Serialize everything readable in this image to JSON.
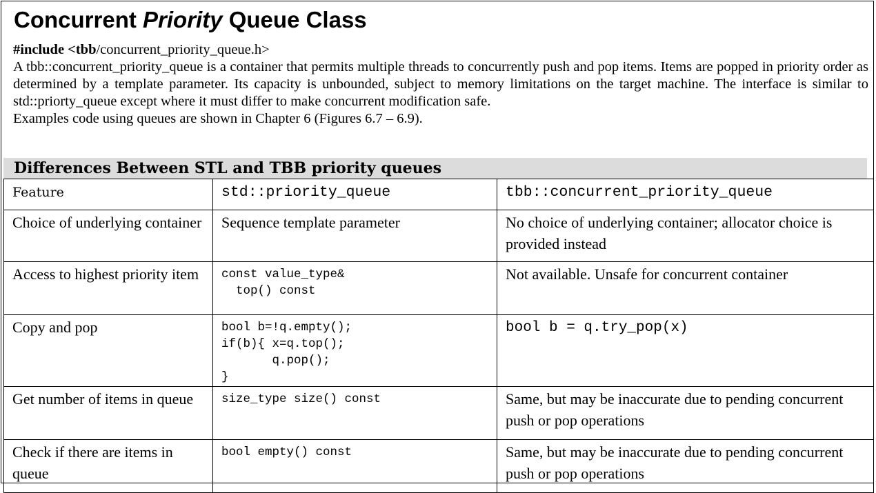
{
  "title": {
    "part1": "Concurrent ",
    "part2": "Priority",
    "part3": " Queue Class"
  },
  "description": {
    "include_bold": "#include <tbb",
    "include_rest": "/concurrent_priority_queue.h>",
    "paragraph": "A tbb::concurrent_priority_queue is a container that permits multiple threads to concurrently push and pop items. Items are popped in priority order as determined by a template parameter. Its capacity is unbounded, subject to memory limitations on the target machine. The interface is similar to std::priorty_queue except where it must differ to make concurrent modification safe.",
    "examples": "Examples code using queues are shown in Chapter 6 (Figures 6.7 – 6.9)."
  },
  "section_header": "Differences Between STL and TBB priority queues",
  "table": {
    "headers": [
      "Feature",
      "std::priority_queue",
      "tbb::concurrent_priority_queue"
    ],
    "rows": [
      {
        "feature": "Choice of underlying container",
        "stl": "Sequence template parameter",
        "tbb": "No choice of underlying container; allocator choice is provided instead"
      },
      {
        "feature": "Access to highest priority item",
        "stl": "const value_type&\n  top() const",
        "tbb": "Not available. Unsafe for concurrent container"
      },
      {
        "feature": "Copy and pop",
        "stl": "bool b=!q.empty();\nif(b){ x=q.top();\n       q.pop();\n}",
        "tbb": "bool b = q.try_pop(x)"
      },
      {
        "feature": "Get number of items in queue",
        "stl": "size_type size() const",
        "tbb": "Same, but may be inaccurate due to pending concurrent push or pop operations"
      },
      {
        "feature": "Check if there are items in queue",
        "stl": "bool empty() const",
        "tbb": "Same, but may be inaccurate due to pending concurrent push or pop operations"
      }
    ]
  }
}
